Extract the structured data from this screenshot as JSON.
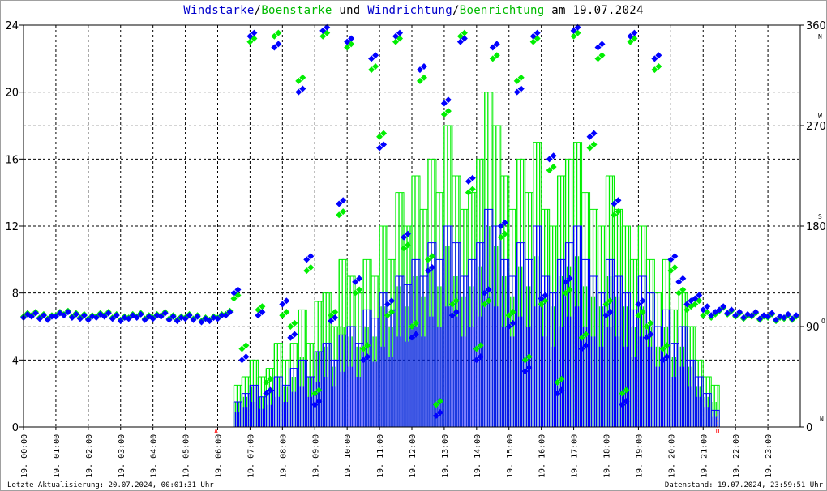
{
  "title_parts": [
    {
      "text": "Windstarke",
      "color": "#0000cc"
    },
    {
      "text": "/",
      "color": "#000000"
    },
    {
      "text": "Boenstarke",
      "color": "#00bb00"
    },
    {
      "text": " und ",
      "color": "#000000"
    },
    {
      "text": "Windrichtung",
      "color": "#0000cc"
    },
    {
      "text": "/",
      "color": "#000000"
    },
    {
      "text": "Boenrichtung",
      "color": "#00bb00"
    },
    {
      "text": " am 19.07.2024",
      "color": "#000000"
    }
  ],
  "footer": {
    "left": "Letzte Aktualisierung: 20.07.2024, 00:01:31 Uhr",
    "right": "Datenstand: 19.07.2024, 23:59:51 Uhr"
  },
  "colors": {
    "wind": "#0000ff",
    "gust": "#00ee00",
    "marker": "#ff0000"
  },
  "chart_data": {
    "type": "line",
    "title": "Windstarke/Boenstarke und Windrichtung/Boenrichtung am 19.07.2024",
    "x_unit": "hours",
    "sample_interval_min": 15,
    "xlim": [
      0,
      24
    ],
    "x_tick_labels": [
      "19. 00:00",
      "19. 01:00",
      "19. 02:00",
      "19. 03:00",
      "19. 04:00",
      "19. 05:00",
      "19. 06:00",
      "19. 07:00",
      "19. 08:00",
      "19. 09:00",
      "19. 10:00",
      "19. 11:00",
      "19. 12:00",
      "19. 13:00",
      "19. 14:00",
      "19. 15:00",
      "19. 16:00",
      "19. 17:00",
      "19. 18:00",
      "19. 19:00",
      "19. 20:00",
      "19. 21:00",
      "19. 22:00",
      "19. 23:00"
    ],
    "y_left": {
      "lim": [
        0,
        24
      ],
      "ticks": [
        0,
        4,
        8,
        12,
        16,
        20,
        24
      ]
    },
    "y_right": {
      "lim": [
        0,
        360
      ],
      "ticks": [
        0,
        90,
        180,
        270,
        360
      ],
      "compass": [
        {
          "deg": 0,
          "label": "N"
        },
        {
          "deg": 90,
          "label": "O"
        },
        {
          "deg": 180,
          "label": "S"
        },
        {
          "deg": 270,
          "label": "W"
        },
        {
          "deg": 360,
          "label": "N"
        }
      ]
    },
    "markers": [
      {
        "label": "A",
        "hour": 5.95
      },
      {
        "label": "U",
        "hour": 21.45
      }
    ],
    "series": [
      {
        "name": "Windstarke",
        "axis": "left",
        "values": [
          0,
          0,
          0,
          0,
          0,
          0,
          0,
          0,
          0,
          0,
          0,
          0,
          0,
          0,
          0,
          0,
          0,
          0,
          0,
          0,
          0,
          0,
          0,
          0,
          0,
          0,
          1.5,
          2,
          2.5,
          1.8,
          2.2,
          3,
          2.5,
          3.5,
          4,
          3,
          4.5,
          5,
          4,
          5.5,
          6,
          5,
          7,
          6.5,
          8,
          7,
          9,
          8.5,
          10,
          9,
          11,
          10,
          12,
          11,
          9,
          10,
          11,
          13,
          12,
          10,
          9,
          11,
          10,
          12,
          9,
          8,
          10,
          11,
          12,
          10,
          9,
          8,
          10,
          9,
          8,
          7,
          9,
          8,
          6,
          7,
          5,
          6,
          4,
          3,
          2,
          1,
          0,
          0,
          0,
          0,
          0,
          0,
          0,
          0,
          0,
          0
        ]
      },
      {
        "name": "Boenstarke",
        "axis": "left",
        "values": [
          0,
          0,
          0,
          0,
          0,
          0,
          0,
          0,
          0,
          0,
          0,
          0,
          0,
          0,
          0,
          0,
          0,
          0,
          0,
          0,
          0,
          0,
          0,
          0,
          0,
          0,
          2.5,
          3,
          4,
          3,
          3.5,
          5,
          4,
          5,
          7,
          5,
          7.5,
          8,
          6,
          10,
          9,
          8,
          10,
          9,
          12,
          10,
          14,
          12,
          15,
          13,
          16,
          14,
          18,
          15,
          13,
          14,
          16,
          20,
          18,
          15,
          13,
          16,
          14,
          17,
          13,
          12,
          15,
          16,
          17,
          14,
          13,
          12,
          15,
          13,
          12,
          10,
          12,
          10,
          8,
          10,
          7,
          8,
          6,
          4,
          3,
          2.5,
          0,
          0,
          0,
          0,
          0,
          0,
          0,
          0,
          0,
          0
        ]
      },
      {
        "name": "Windrichtung",
        "axis": "right",
        "values": [
          98,
          99,
          97,
          96,
          99,
          100,
          98,
          97,
          96,
          98,
          99,
          97,
          95,
          97,
          98,
          96,
          97,
          99,
          96,
          95,
          97,
          96,
          94,
          95,
          97,
          100,
          120,
          60,
          350,
          100,
          30,
          340,
          110,
          80,
          300,
          150,
          20,
          355,
          95,
          200,
          345,
          130,
          60,
          330,
          250,
          110,
          350,
          170,
          80,
          320,
          140,
          10,
          290,
          100,
          345,
          220,
          60,
          120,
          340,
          180,
          90,
          300,
          50,
          350,
          115,
          240,
          30,
          130,
          355,
          70,
          260,
          340,
          100,
          200,
          20,
          350,
          110,
          80,
          330,
          60,
          150,
          130,
          110,
          115,
          105,
          100,
          105,
          102,
          100,
          98,
          100,
          97,
          99,
          96,
          98,
          97
        ]
      },
      {
        "name": "Boenrichtung",
        "axis": "right",
        "values": [
          99,
          100,
          98,
          97,
          100,
          101,
          99,
          98,
          97,
          99,
          100,
          98,
          96,
          98,
          99,
          97,
          98,
          100,
          97,
          96,
          98,
          97,
          95,
          96,
          98,
          101,
          115,
          70,
          345,
          105,
          40,
          350,
          100,
          90,
          310,
          140,
          30,
          350,
          100,
          190,
          340,
          120,
          70,
          320,
          260,
          100,
          345,
          160,
          90,
          310,
          150,
          20,
          280,
          110,
          350,
          210,
          70,
          110,
          330,
          170,
          100,
          310,
          60,
          345,
          110,
          230,
          40,
          120,
          350,
          80,
          250,
          330,
          110,
          190,
          30,
          345,
          100,
          90,
          320,
          70,
          140,
          120,
          105,
          110,
          100,
          98,
          104,
          101,
          99,
          97,
          99,
          96,
          98,
          95,
          97,
          96
        ]
      }
    ]
  }
}
